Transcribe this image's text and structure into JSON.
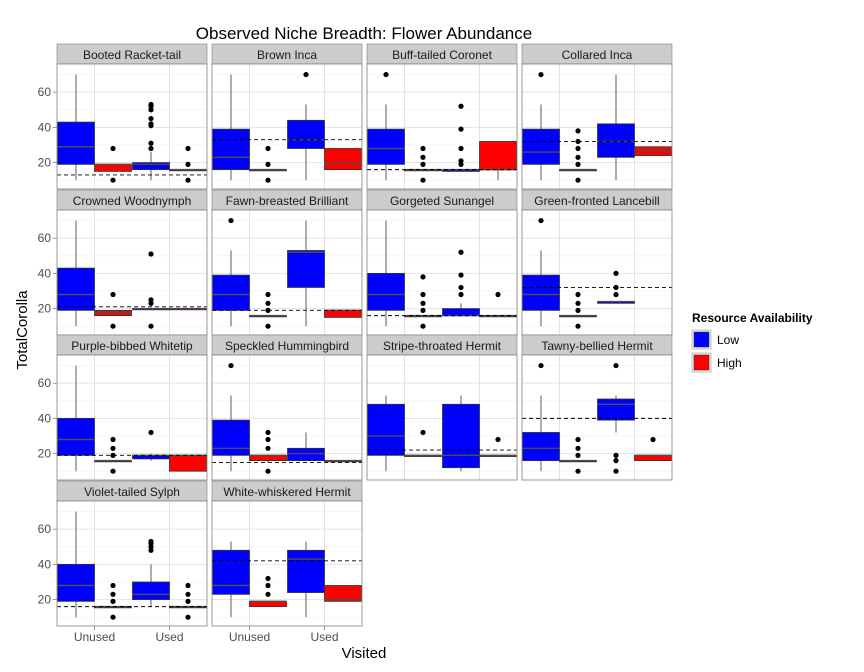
{
  "chart_data": {
    "type": "boxplot",
    "title": "Observed Niche Breadth: Flower Abundance",
    "xlabel": "Visited",
    "ylabel": "TotalCorolla",
    "categories": [
      "Unused",
      "Used"
    ],
    "y_ticks": [
      20,
      40,
      60
    ],
    "ylim": [
      5,
      76
    ],
    "grid": true,
    "legend": {
      "title": "Resource Availability",
      "position": "right",
      "items": [
        {
          "label": "Low",
          "color": "#0000ff"
        },
        {
          "label": "High",
          "color": "#ff0000"
        }
      ]
    },
    "panels": [
      {
        "name": "Booted Racket-tail",
        "hline": 13,
        "boxes": [
          {
            "x": "Unused",
            "group": "Low",
            "min": 10,
            "q1": 19,
            "median": 29,
            "q3": 43,
            "max": 70,
            "outliers": []
          },
          {
            "x": "Unused",
            "group": "High",
            "min": 15,
            "q1": 15,
            "median": 19,
            "q3": 19,
            "max": 19,
            "outliers": [
              10,
              28
            ]
          },
          {
            "x": "Used",
            "group": "Low",
            "min": 10,
            "q1": 16,
            "median": 19,
            "q3": 20,
            "max": 26,
            "outliers": [
              28,
              31,
              41,
              42,
              45,
              50,
              52,
              53
            ]
          },
          {
            "x": "Used",
            "group": "High",
            "min": 16,
            "q1": 16,
            "median": 16,
            "q3": 16,
            "max": 16,
            "outliers": [
              10,
              19,
              28
            ]
          }
        ]
      },
      {
        "name": "Brown Inca",
        "hline": 33,
        "boxes": [
          {
            "x": "Unused",
            "group": "Low",
            "min": 10,
            "q1": 16,
            "median": 23,
            "q3": 39,
            "max": 70,
            "outliers": []
          },
          {
            "x": "Unused",
            "group": "High",
            "min": 16,
            "q1": 16,
            "median": 16,
            "q3": 16,
            "max": 16,
            "outliers": [
              10,
              19,
              28
            ]
          },
          {
            "x": "Used",
            "group": "Low",
            "min": 10,
            "q1": 28,
            "median": 33,
            "q3": 44,
            "max": 53,
            "outliers": [
              70
            ]
          },
          {
            "x": "Used",
            "group": "High",
            "min": 16,
            "q1": 16,
            "median": 20,
            "q3": 28,
            "max": 28,
            "outliers": []
          }
        ]
      },
      {
        "name": "Buff-tailed Coronet",
        "hline": 16,
        "boxes": [
          {
            "x": "Unused",
            "group": "Low",
            "min": 10,
            "q1": 19,
            "median": 28,
            "q3": 39,
            "max": 53,
            "outliers": [
              70
            ]
          },
          {
            "x": "Unused",
            "group": "High",
            "min": 16,
            "q1": 16,
            "median": 16,
            "q3": 16,
            "max": 16,
            "outliers": [
              10,
              19,
              23,
              28
            ]
          },
          {
            "x": "Used",
            "group": "Low",
            "min": 15,
            "q1": 15,
            "median": 16,
            "q3": 16,
            "max": 16,
            "outliers": [
              19,
              21,
              28,
              39,
              52
            ]
          },
          {
            "x": "Used",
            "group": "High",
            "min": 10,
            "q1": 16,
            "median": 16,
            "q3": 32,
            "max": 32,
            "outliers": []
          }
        ]
      },
      {
        "name": "Collared Inca",
        "hline": 32,
        "boxes": [
          {
            "x": "Unused",
            "group": "Low",
            "min": 10,
            "q1": 19,
            "median": 26,
            "q3": 39,
            "max": 53,
            "outliers": [
              70
            ]
          },
          {
            "x": "Unused",
            "group": "High",
            "min": 16,
            "q1": 16,
            "median": 16,
            "q3": 16,
            "max": 16,
            "outliers": [
              10,
              19,
              23,
              28,
              32,
              38
            ]
          },
          {
            "x": "Used",
            "group": "Low",
            "min": 10,
            "q1": 23,
            "median": 32,
            "q3": 42,
            "max": 70,
            "outliers": []
          },
          {
            "x": "Used",
            "group": "High",
            "min": 24,
            "q1": 24,
            "median": 27,
            "q3": 29,
            "max": 29,
            "outliers": []
          }
        ]
      },
      {
        "name": "Crowned Woodnymph",
        "hline": 21,
        "boxes": [
          {
            "x": "Unused",
            "group": "Low",
            "min": 10,
            "q1": 19,
            "median": 28,
            "q3": 43,
            "max": 70,
            "outliers": []
          },
          {
            "x": "Unused",
            "group": "High",
            "min": 16,
            "q1": 16,
            "median": 18,
            "q3": 19,
            "max": 19,
            "outliers": [
              10,
              28
            ]
          },
          {
            "x": "Used",
            "group": "Low",
            "min": 20,
            "q1": 20,
            "median": 20,
            "q3": 20,
            "max": 20,
            "outliers": [
              10,
              23,
              25,
              51
            ]
          },
          {
            "x": "Used",
            "group": "High",
            "min": 20,
            "q1": 20,
            "median": 20,
            "q3": 20,
            "max": 20,
            "outliers": []
          }
        ]
      },
      {
        "name": "Fawn-breasted Brilliant",
        "hline": 19,
        "boxes": [
          {
            "x": "Unused",
            "group": "Low",
            "min": 10,
            "q1": 19,
            "median": 28,
            "q3": 39,
            "max": 53,
            "outliers": [
              70
            ]
          },
          {
            "x": "Unused",
            "group": "High",
            "min": 16,
            "q1": 16,
            "median": 16,
            "q3": 16,
            "max": 16,
            "outliers": [
              10,
              19,
              23,
              28
            ]
          },
          {
            "x": "Used",
            "group": "Low",
            "min": 10,
            "q1": 32,
            "median": 52,
            "q3": 53,
            "max": 70,
            "outliers": []
          },
          {
            "x": "Used",
            "group": "High",
            "min": 15,
            "q1": 15,
            "median": 19,
            "q3": 19,
            "max": 19,
            "outliers": []
          }
        ]
      },
      {
        "name": "Gorgeted Sunangel",
        "hline": 16,
        "boxes": [
          {
            "x": "Unused",
            "group": "Low",
            "min": 10,
            "q1": 19,
            "median": 28,
            "q3": 40,
            "max": 70,
            "outliers": []
          },
          {
            "x": "Unused",
            "group": "High",
            "min": 16,
            "q1": 16,
            "median": 16,
            "q3": 16,
            "max": 16,
            "outliers": [
              10,
              19,
              23,
              28,
              38
            ]
          },
          {
            "x": "Used",
            "group": "Low",
            "min": 16,
            "q1": 16,
            "median": 16,
            "q3": 20,
            "max": 23,
            "outliers": [
              28,
              32,
              39,
              52
            ]
          },
          {
            "x": "Used",
            "group": "High",
            "min": 16,
            "q1": 16,
            "median": 16,
            "q3": 16,
            "max": 16,
            "outliers": [
              28
            ]
          }
        ]
      },
      {
        "name": "Green-fronted Lancebill",
        "hline": 32,
        "boxes": [
          {
            "x": "Unused",
            "group": "Low",
            "min": 10,
            "q1": 19,
            "median": 28,
            "q3": 39,
            "max": 53,
            "outliers": [
              70
            ]
          },
          {
            "x": "Unused",
            "group": "High",
            "min": 16,
            "q1": 16,
            "median": 16,
            "q3": 16,
            "max": 16,
            "outliers": [
              10,
              19,
              23,
              28
            ]
          },
          {
            "x": "Used",
            "group": "Low",
            "min": 23,
            "q1": 23,
            "median": 24,
            "q3": 24,
            "max": 24,
            "outliers": [
              28,
              32,
              40
            ]
          }
        ]
      },
      {
        "name": "Purple-bibbed Whitetip",
        "hline": 19,
        "boxes": [
          {
            "x": "Unused",
            "group": "Low",
            "min": 10,
            "q1": 19,
            "median": 28,
            "q3": 40,
            "max": 70,
            "outliers": []
          },
          {
            "x": "Unused",
            "group": "High",
            "min": 16,
            "q1": 16,
            "median": 16,
            "q3": 16,
            "max": 16,
            "outliers": [
              10,
              19,
              23,
              28
            ]
          },
          {
            "x": "Used",
            "group": "Low",
            "min": 16,
            "q1": 17,
            "median": 19,
            "q3": 19,
            "max": 20,
            "outliers": [
              32
            ]
          },
          {
            "x": "Used",
            "group": "High",
            "min": 10,
            "q1": 10,
            "median": 19,
            "q3": 19,
            "max": 19,
            "outliers": []
          }
        ]
      },
      {
        "name": "Speckled Hummingbird",
        "hline": 15,
        "boxes": [
          {
            "x": "Unused",
            "group": "Low",
            "min": 10,
            "q1": 19,
            "median": 23,
            "q3": 39,
            "max": 53,
            "outliers": [
              70
            ]
          },
          {
            "x": "Unused",
            "group": "High",
            "min": 15,
            "q1": 16,
            "median": 19,
            "q3": 19,
            "max": 19,
            "outliers": [
              10,
              23,
              28,
              32
            ]
          },
          {
            "x": "Used",
            "group": "Low",
            "min": 16,
            "q1": 16,
            "median": 20,
            "q3": 23,
            "max": 32,
            "outliers": []
          },
          {
            "x": "Used",
            "group": "High",
            "min": 16,
            "q1": 16,
            "median": 16,
            "q3": 16,
            "max": 16,
            "outliers": []
          }
        ]
      },
      {
        "name": "Stripe-throated Hermit",
        "hline": 22,
        "boxes": [
          {
            "x": "Unused",
            "group": "Low",
            "min": 10,
            "q1": 19,
            "median": 30,
            "q3": 48,
            "max": 53,
            "outliers": []
          },
          {
            "x": "Unused",
            "group": "High",
            "min": 19,
            "q1": 19,
            "median": 19,
            "q3": 19,
            "max": 19,
            "outliers": [
              32
            ]
          },
          {
            "x": "Used",
            "group": "Low",
            "min": 10,
            "q1": 12,
            "median": 19,
            "q3": 48,
            "max": 53,
            "outliers": []
          },
          {
            "x": "Used",
            "group": "High",
            "min": 19,
            "q1": 19,
            "median": 19,
            "q3": 19,
            "max": 19,
            "outliers": [
              28
            ]
          }
        ]
      },
      {
        "name": "Tawny-bellied Hermit",
        "hline": 40,
        "boxes": [
          {
            "x": "Unused",
            "group": "Low",
            "min": 10,
            "q1": 16,
            "median": 23,
            "q3": 32,
            "max": 53,
            "outliers": [
              70
            ]
          },
          {
            "x": "Unused",
            "group": "High",
            "min": 16,
            "q1": 16,
            "median": 16,
            "q3": 16,
            "max": 16,
            "outliers": [
              10,
              19,
              23,
              28
            ]
          },
          {
            "x": "Used",
            "group": "Low",
            "min": 32,
            "q1": 39,
            "median": 48,
            "q3": 51,
            "max": 53,
            "outliers": [
              10,
              16,
              19,
              70
            ]
          },
          {
            "x": "Used",
            "group": "High",
            "min": 16,
            "q1": 16,
            "median": 19,
            "q3": 19,
            "max": 19,
            "outliers": [
              28
            ]
          }
        ]
      },
      {
        "name": "Violet-tailed Sylph",
        "hline": 16,
        "boxes": [
          {
            "x": "Unused",
            "group": "Low",
            "min": 10,
            "q1": 19,
            "median": 28,
            "q3": 40,
            "max": 70,
            "outliers": []
          },
          {
            "x": "Unused",
            "group": "High",
            "min": 16,
            "q1": 16,
            "median": 16,
            "q3": 16,
            "max": 16,
            "outliers": [
              10,
              19,
              23,
              28
            ]
          },
          {
            "x": "Used",
            "group": "Low",
            "min": 16,
            "q1": 20,
            "median": 23,
            "q3": 30,
            "max": 40,
            "outliers": [
              48,
              50,
              52,
              53
            ]
          },
          {
            "x": "Used",
            "group": "High",
            "min": 16,
            "q1": 16,
            "median": 16,
            "q3": 16,
            "max": 16,
            "outliers": [
              10,
              19,
              23,
              28
            ]
          }
        ]
      },
      {
        "name": "White-whiskered Hermit",
        "hline": 42,
        "boxes": [
          {
            "x": "Unused",
            "group": "Low",
            "min": 10,
            "q1": 23,
            "median": 28,
            "q3": 48,
            "max": 53,
            "outliers": []
          },
          {
            "x": "Unused",
            "group": "High",
            "min": 16,
            "q1": 16,
            "median": 19,
            "q3": 19,
            "max": 19,
            "outliers": [
              23,
              28,
              32
            ]
          },
          {
            "x": "Used",
            "group": "Low",
            "min": 10,
            "q1": 24,
            "median": 43,
            "q3": 48,
            "max": 53,
            "outliers": []
          },
          {
            "x": "Used",
            "group": "High",
            "min": 19,
            "q1": 19,
            "median": 20,
            "q3": 28,
            "max": 28,
            "outliers": []
          }
        ]
      }
    ]
  }
}
